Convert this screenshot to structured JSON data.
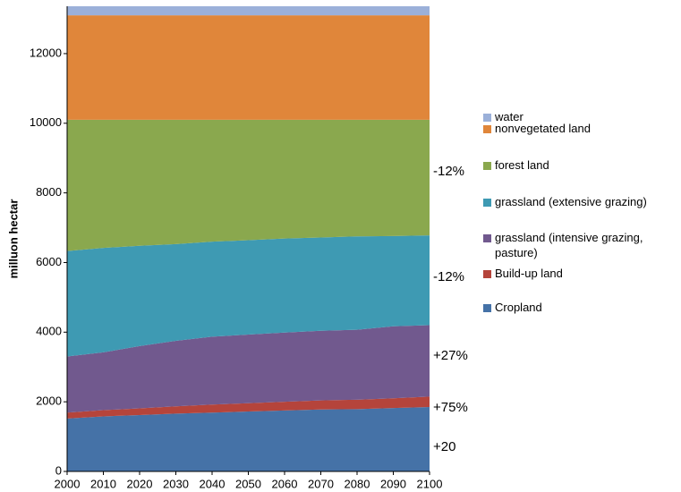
{
  "chart_data": {
    "type": "stacked-area",
    "y_label": "milluon hectar",
    "x": [
      2000,
      2010,
      2020,
      2030,
      2040,
      2050,
      2060,
      2070,
      2080,
      2090,
      2100
    ],
    "xlim": [
      2000,
      2100
    ],
    "xticks": [
      2000,
      2010,
      2020,
      2030,
      2040,
      2050,
      2060,
      2070,
      2080,
      2090,
      2100
    ],
    "ylim": [
      0,
      13360
    ],
    "yticks": [
      0,
      2000,
      4000,
      6000,
      8000,
      10000,
      12000
    ],
    "grid": false,
    "legend": "right",
    "series": [
      {
        "name": "Cropland",
        "color": "#4572a7",
        "values": [
          1520,
          1580,
          1620,
          1660,
          1690,
          1720,
          1750,
          1780,
          1790,
          1820,
          1850
        ]
      },
      {
        "name": "Build-up land",
        "color": "#b5443b",
        "values": [
          170,
          180,
          190,
          210,
          230,
          240,
          250,
          260,
          270,
          280,
          300
        ]
      },
      {
        "name": "grassland (intensive grazing, pasture)",
        "color": "#71598e",
        "values": [
          1610,
          1660,
          1790,
          1880,
          1950,
          1970,
          1990,
          2000,
          2010,
          2070,
          2050
        ]
      },
      {
        "name": "grassland (extensive grazing)",
        "color": "#3e9ab3",
        "values": [
          3030,
          3000,
          2880,
          2780,
          2730,
          2710,
          2700,
          2680,
          2680,
          2590,
          2580
        ]
      },
      {
        "name": "forest land",
        "color": "#8aa84e",
        "values": [
          3770,
          3680,
          3620,
          3570,
          3500,
          3460,
          3410,
          3380,
          3350,
          3340,
          3320
        ]
      },
      {
        "name": "nonvegetated land",
        "color": "#e0863a",
        "values": [
          3000,
          3000,
          3000,
          3000,
          3000,
          3000,
          3000,
          3000,
          3000,
          3000,
          3000
        ]
      },
      {
        "name": "water",
        "color": "#9bb0d9",
        "values": [
          260,
          260,
          260,
          260,
          260,
          260,
          260,
          260,
          260,
          260,
          260
        ]
      }
    ],
    "annotations": [
      "-12%",
      "-12%",
      "+27%",
      "+75%",
      "+20"
    ]
  }
}
